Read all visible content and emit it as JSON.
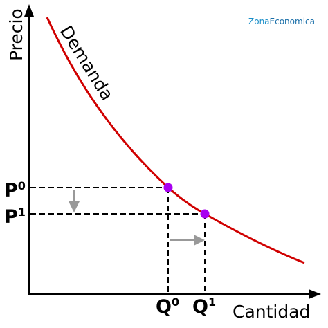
{
  "brand": {
    "first": "Zona",
    "second": "Economica"
  },
  "axes": {
    "y_label": "Precio",
    "x_label": "Cantidad"
  },
  "curve": {
    "label": "Demanda"
  },
  "price_labels": [
    {
      "letter": "P",
      "sup": "0"
    },
    {
      "letter": "P",
      "sup": "1"
    }
  ],
  "quantity_labels": [
    {
      "letter": "Q",
      "sup": "0"
    },
    {
      "letter": "Q",
      "sup": "1"
    }
  ]
}
